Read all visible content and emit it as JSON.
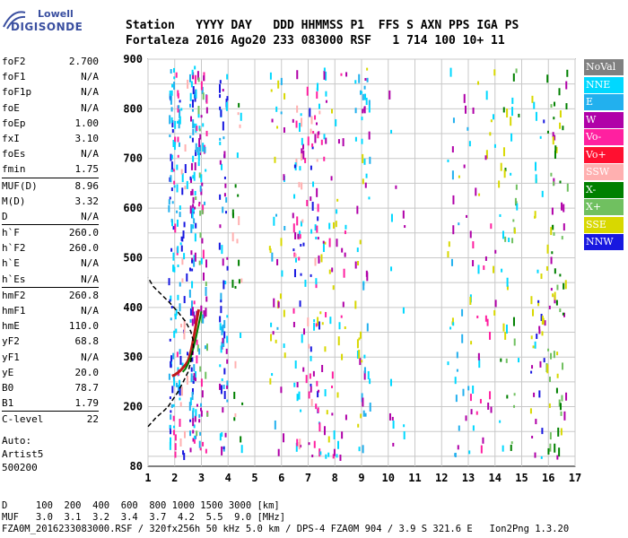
{
  "logo": {
    "line1": "Lowell",
    "line2": "DIGISONDE"
  },
  "header": {
    "line1": "Station   YYYY DAY   DDD HHMMSS P1  FFS S AXN PPS IGA PS",
    "line2": "Fortaleza 2016 Ago20 233 083000 RSF   1 714 100 10+ 11"
  },
  "params": {
    "group1": [
      {
        "k": "foF2",
        "v": "2.700"
      },
      {
        "k": "foF1",
        "v": "N/A"
      },
      {
        "k": "foF1p",
        "v": "N/A"
      },
      {
        "k": "foE",
        "v": "N/A"
      },
      {
        "k": "foEp",
        "v": "1.00"
      },
      {
        "k": "fxI",
        "v": "3.10"
      },
      {
        "k": "foEs",
        "v": "N/A"
      },
      {
        "k": "fmin",
        "v": "1.75"
      }
    ],
    "group2": [
      {
        "k": "MUF(D)",
        "v": "8.96"
      },
      {
        "k": "M(D)",
        "v": "3.32"
      },
      {
        "k": "D",
        "v": "N/A"
      }
    ],
    "group3": [
      {
        "k": "h`F",
        "v": "260.0"
      },
      {
        "k": "h`F2",
        "v": "260.0"
      },
      {
        "k": "h`E",
        "v": "N/A"
      },
      {
        "k": "h`Es",
        "v": "N/A"
      }
    ],
    "group4": [
      {
        "k": "hmF2",
        "v": "260.8"
      },
      {
        "k": "hmF1",
        "v": "N/A"
      },
      {
        "k": "hmE",
        "v": "110.0"
      },
      {
        "k": "yF2",
        "v": "68.8"
      },
      {
        "k": "yF1",
        "v": "N/A"
      },
      {
        "k": "yE",
        "v": "20.0"
      },
      {
        "k": "B0",
        "v": "78.7"
      },
      {
        "k": "B1",
        "v": "1.79"
      }
    ],
    "group5": [
      {
        "k": "C-level",
        "v": "22"
      }
    ]
  },
  "artist": {
    "line1": "Auto:",
    "line2": "Artist5",
    "line3": "500200"
  },
  "legend": [
    {
      "label": "NoVal",
      "color": "#808080"
    },
    {
      "label": "NNE",
      "color": "#00d8ff"
    },
    {
      "label": "E",
      "color": "#22b0ee"
    },
    {
      "label": "W",
      "color": "#b000a8"
    },
    {
      "label": "Vo-",
      "color": "#ff20a0"
    },
    {
      "label": "Vo+",
      "color": "#ff1030"
    },
    {
      "label": "SSW",
      "color": "#ffb0b0"
    },
    {
      "label": "X-",
      "color": "#008000"
    },
    {
      "label": "X+",
      "color": "#70c060"
    },
    {
      "label": "SSE",
      "color": "#d8d800"
    },
    {
      "label": "NNW",
      "color": "#1818e0"
    }
  ],
  "footer": {
    "line1": "D     100  200  400  600  800 1000 1500 3000 [km]",
    "line2": "MUF   3.0  3.1  3.2  3.4  3.7  4.2  5.5  9.0 [MHz]",
    "line3": "FZA0M_2016233083000.RSF / 320fx256h 50 kHz 5.0 km / DPS-4 FZA0M 904 / 3.9 S 321.6 E   Ion2Png 1.3.20"
  },
  "chart_data": {
    "type": "scatter",
    "title": "",
    "xlabel": "",
    "ylabel": "",
    "xlim": [
      1,
      17
    ],
    "ylim": [
      80,
      900
    ],
    "xticks": [
      1,
      2,
      3,
      4,
      5,
      6,
      7,
      8,
      9,
      10,
      11,
      12,
      13,
      14,
      15,
      16,
      17
    ],
    "yticks": [
      80,
      200,
      300,
      400,
      500,
      600,
      700,
      800,
      900
    ],
    "grid": true,
    "traces": {
      "virtual_height_trace": {
        "color": "#c01818",
        "x": [
          1.9,
          2.0,
          2.1,
          2.2,
          2.3,
          2.4,
          2.5,
          2.55,
          2.6,
          2.65,
          2.7,
          2.75,
          2.8,
          2.85,
          2.9
        ],
        "y": [
          262,
          264,
          268,
          272,
          278,
          284,
          292,
          300,
          310,
          322,
          336,
          350,
          366,
          382,
          396
        ]
      },
      "x_trace": {
        "color": "#008000",
        "x": [
          2.3,
          2.4,
          2.5,
          2.6,
          2.7,
          2.8,
          2.9,
          3.0
        ],
        "y": [
          270,
          276,
          286,
          300,
          318,
          340,
          366,
          392
        ]
      },
      "profile": {
        "color": "#000000",
        "x": [
          1.75,
          1.9,
          2.1,
          2.3,
          2.5,
          2.6,
          2.65,
          2.7,
          2.68,
          2.6,
          2.4,
          2.1,
          1.8,
          1.5,
          1.2,
          1.0
        ],
        "y": [
          200,
          212,
          228,
          248,
          270,
          290,
          306,
          320,
          336,
          352,
          372,
          392,
          410,
          426,
          442,
          460
        ]
      },
      "profile_low": {
        "color": "#000000",
        "x": [
          1.0,
          1.3,
          1.6,
          1.75
        ],
        "y": [
          160,
          178,
          192,
          200
        ]
      }
    }
  }
}
